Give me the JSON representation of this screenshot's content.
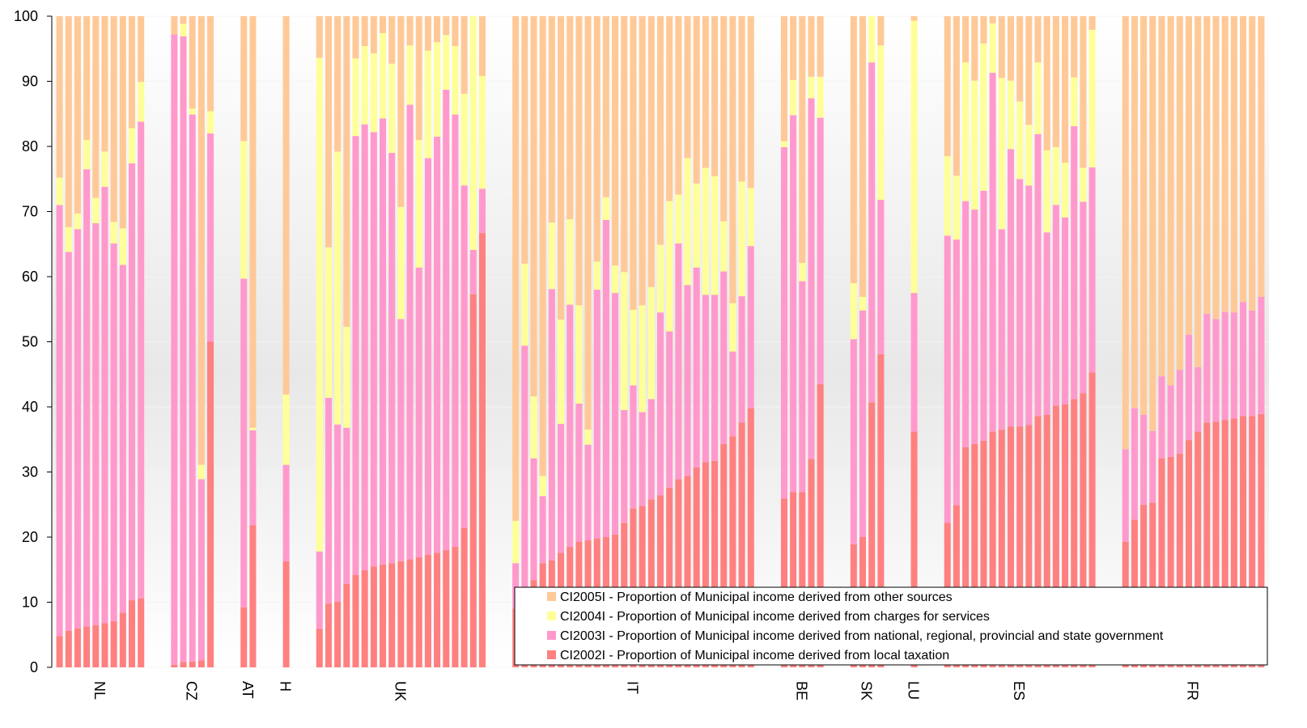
{
  "chart_data": {
    "type": "bar",
    "stacked": true,
    "ylim": [
      0,
      100
    ],
    "yticks": [
      0,
      10,
      20,
      30,
      40,
      50,
      60,
      70,
      80,
      90,
      100
    ],
    "grid": true,
    "legend_position": "bottom-right",
    "colors": {
      "CI2005I": "#FFC997",
      "CI2004I": "#FFFF99",
      "CI2003I": "#FF99CC",
      "CI2002I": "#FF8080"
    },
    "legend": [
      {
        "code": "CI2005I",
        "label": "CI2005I - Proportion of Municipal income derived from other sources"
      },
      {
        "code": "CI2004I",
        "label": "CI2004I - Proportion of Municipal income derived from charges for services"
      },
      {
        "code": "CI2003I",
        "label": "CI2003I - Proportion of Municipal income derived from national, regional, provincial and state government"
      },
      {
        "code": "CI2002I",
        "label": "CI2002I - Proportion of Municipal income derived from local taxation"
      }
    ],
    "groups": [
      {
        "label": "NL",
        "bars": [
          [
            4.8,
            66.2,
            4.2
          ],
          [
            5.6,
            58.2,
            3.8
          ],
          [
            6.0,
            61.3,
            2.4
          ],
          [
            6.3,
            70.2,
            4.5
          ],
          [
            6.5,
            61.7,
            3.9
          ],
          [
            6.8,
            67.0,
            5.4
          ],
          [
            7.1,
            58.0,
            3.3
          ],
          [
            8.4,
            53.4,
            5.6
          ],
          [
            10.3,
            67.1,
            5.4
          ],
          [
            10.6,
            73.2,
            6.1
          ]
        ]
      },
      {
        "label": "CZ",
        "bars": [
          [
            0.4,
            96.8,
            0.0
          ],
          [
            0.8,
            96.1,
            1.9
          ],
          [
            0.9,
            84.0,
            0.9
          ],
          [
            1.1,
            27.8,
            2.2
          ],
          [
            50.0,
            32.0,
            3.4
          ]
        ]
      },
      {
        "label": "AT",
        "bars": [
          [
            9.2,
            50.5,
            21.1
          ],
          [
            21.8,
            14.6,
            0.4
          ]
        ]
      },
      {
        "label": "H",
        "bars": [
          [
            16.3,
            14.8,
            10.8
          ]
        ]
      },
      {
        "label": "UK",
        "bars": [
          [
            5.9,
            11.9,
            75.8
          ],
          [
            9.8,
            31.6,
            23.1
          ],
          [
            10.1,
            27.2,
            41.9
          ],
          [
            12.8,
            24.0,
            15.5
          ],
          [
            14.2,
            67.4,
            11.9
          ],
          [
            14.9,
            68.5,
            12.0
          ],
          [
            15.5,
            66.7,
            12.1
          ],
          [
            15.8,
            68.5,
            13.1
          ],
          [
            16.0,
            63.0,
            13.7
          ],
          [
            16.3,
            37.2,
            17.2
          ],
          [
            16.6,
            69.8,
            9.1
          ],
          [
            16.9,
            44.5,
            19.6
          ],
          [
            17.3,
            60.9,
            16.5
          ],
          [
            17.6,
            63.9,
            14.5
          ],
          [
            18.0,
            70.7,
            8.4
          ],
          [
            18.5,
            66.4,
            10.5
          ],
          [
            21.4,
            52.6,
            14.1
          ],
          [
            57.3,
            6.8,
            35.9
          ],
          [
            66.7,
            6.8,
            17.3
          ]
        ]
      },
      {
        "label": "IT",
        "bars": [
          [
            9.0,
            7.0,
            6.5
          ],
          [
            12.0,
            37.4,
            12.6
          ],
          [
            13.4,
            18.7,
            9.5
          ],
          [
            16.0,
            10.3,
            3.1
          ],
          [
            16.4,
            41.7,
            10.2
          ],
          [
            17.6,
            19.8,
            16.0
          ],
          [
            18.5,
            37.2,
            13.1
          ],
          [
            19.3,
            21.2,
            15.1
          ],
          [
            19.5,
            14.7,
            2.3
          ],
          [
            19.8,
            38.2,
            4.3
          ],
          [
            20.0,
            48.7,
            3.5
          ],
          [
            20.4,
            37.1,
            4.2
          ],
          [
            22.2,
            17.3,
            21.2
          ],
          [
            24.4,
            18.9,
            11.6
          ],
          [
            24.8,
            14.4,
            16.4
          ],
          [
            25.8,
            15.4,
            17.2
          ],
          [
            26.4,
            28.1,
            10.4
          ],
          [
            27.6,
            24.0,
            20.0
          ],
          [
            28.9,
            36.2,
            7.5
          ],
          [
            29.4,
            29.3,
            19.5
          ],
          [
            30.7,
            30.7,
            12.9
          ],
          [
            31.5,
            25.7,
            19.5
          ],
          [
            31.7,
            25.5,
            18.2
          ],
          [
            34.3,
            26.5,
            7.7
          ],
          [
            35.5,
            13.0,
            7.4
          ],
          [
            37.6,
            19.4,
            17.6
          ],
          [
            39.8,
            24.9,
            8.9
          ]
        ]
      },
      {
        "label": "BE",
        "bars": [
          [
            25.9,
            54.0,
            0.9
          ],
          [
            26.9,
            57.9,
            5.4
          ],
          [
            26.9,
            32.4,
            2.8
          ],
          [
            32.0,
            55.4,
            3.3
          ],
          [
            43.5,
            40.9,
            6.3
          ]
        ]
      },
      {
        "label": "SK",
        "bars": [
          [
            18.9,
            31.5,
            8.6
          ],
          [
            20.0,
            34.8,
            2.1
          ],
          [
            40.7,
            52.2,
            7.1
          ],
          [
            48.1,
            23.7,
            23.7
          ]
        ]
      },
      {
        "label": "LU",
        "bars": [
          [
            36.2,
            21.3,
            41.8
          ]
        ]
      },
      {
        "label": "ES",
        "bars": [
          [
            22.2,
            44.1,
            12.2
          ],
          [
            24.9,
            40.8,
            9.8
          ],
          [
            33.8,
            37.8,
            21.3
          ],
          [
            34.3,
            36.0,
            19.8
          ],
          [
            34.8,
            38.4,
            22.6
          ],
          [
            36.2,
            55.1,
            7.6
          ],
          [
            36.5,
            30.8,
            23.2
          ],
          [
            37.0,
            42.6,
            10.5
          ],
          [
            37.0,
            38.0,
            11.9
          ],
          [
            37.2,
            36.8,
            9.3
          ],
          [
            38.6,
            43.3,
            11.0
          ],
          [
            38.8,
            28.0,
            12.6
          ],
          [
            40.2,
            30.8,
            8.9
          ],
          [
            40.4,
            28.7,
            8.4
          ],
          [
            41.2,
            41.9,
            7.5
          ],
          [
            42.1,
            29.4,
            5.2
          ],
          [
            45.3,
            31.5,
            21.1
          ]
        ]
      },
      {
        "label": "FR",
        "bars": [
          [
            19.3,
            14.2,
            0
          ],
          [
            22.7,
            17.1,
            0
          ],
          [
            25.0,
            13.8,
            0
          ],
          [
            25.3,
            11.0,
            0
          ],
          [
            32.1,
            12.6,
            0
          ],
          [
            32.3,
            11.0,
            0
          ],
          [
            32.8,
            12.9,
            0
          ],
          [
            34.9,
            16.2,
            0
          ],
          [
            36.2,
            9.9,
            0
          ],
          [
            37.6,
            16.7,
            0
          ],
          [
            37.7,
            15.8,
            0
          ],
          [
            38.0,
            16.6,
            0
          ],
          [
            38.2,
            16.3,
            0
          ],
          [
            38.6,
            17.5,
            0
          ],
          [
            38.6,
            16.2,
            0
          ],
          [
            38.9,
            18.0,
            0
          ]
        ]
      }
    ]
  }
}
